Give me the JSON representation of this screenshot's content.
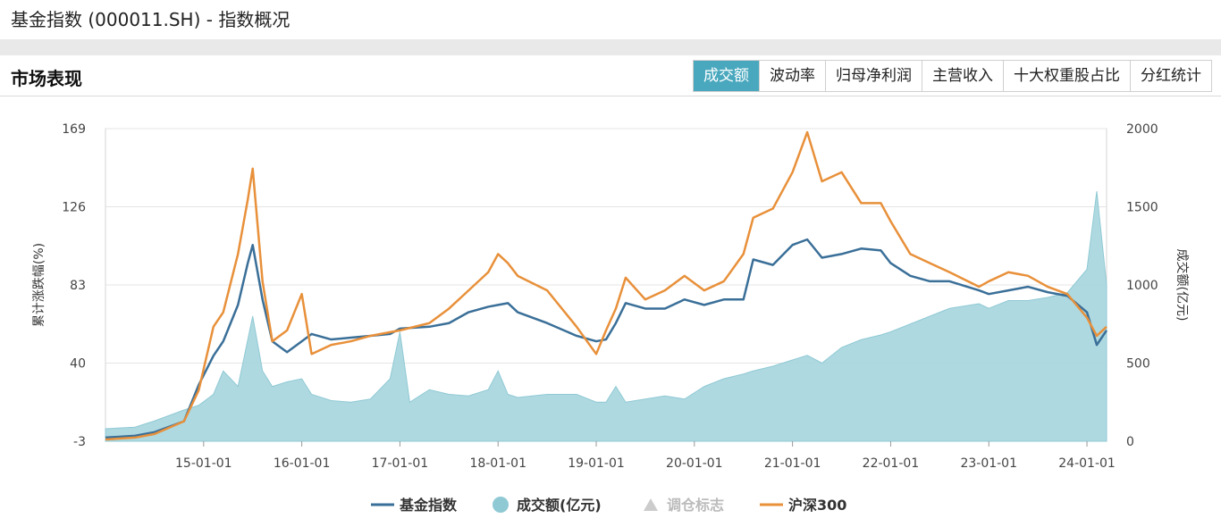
{
  "page": {
    "title": "基金指数 (000011.SH) - 指数概况"
  },
  "section": {
    "title": "市场表现",
    "tabs": [
      {
        "label": "成交额",
        "active": true
      },
      {
        "label": "波动率",
        "active": false
      },
      {
        "label": "归母净利润",
        "active": false
      },
      {
        "label": "主营收入",
        "active": false
      },
      {
        "label": "十大权重股占比",
        "active": false
      },
      {
        "label": "分红统计",
        "active": false
      }
    ]
  },
  "colors": {
    "fund_line": "#3a6f98",
    "csi300_line": "#e8903a",
    "volume_fill": "#a6d5de",
    "active_tab": "#4aa8be"
  },
  "chart_data": {
    "type": "line",
    "xlabel": "",
    "ylabel_left": "累计涨跌幅(%)",
    "ylabel_right": "成交额(亿元)",
    "y_left_ticks": [
      -3,
      40,
      83,
      126,
      169
    ],
    "y_right_ticks": [
      0,
      500,
      1000,
      1500,
      2000
    ],
    "y_left_range": [
      -3,
      169
    ],
    "y_right_range": [
      0,
      2000
    ],
    "x_range": [
      2014.0,
      2024.2
    ],
    "x_ticks": [
      "15-01-01",
      "16-01-01",
      "17-01-01",
      "18-01-01",
      "19-01-01",
      "20-01-01",
      "21-01-01",
      "22-01-01",
      "23-01-01",
      "24-01-01"
    ],
    "grid": "horizontal",
    "legend": [
      "基金指数",
      "成交额(亿元)",
      "调仓标志",
      "沪深300"
    ],
    "legend_position": "bottom",
    "series": [
      {
        "name": "基金指数",
        "axis": "left",
        "kind": "line",
        "points": [
          [
            2014.0,
            -1
          ],
          [
            2014.3,
            0
          ],
          [
            2014.5,
            2
          ],
          [
            2014.8,
            8
          ],
          [
            2014.95,
            28
          ],
          [
            2015.1,
            44
          ],
          [
            2015.2,
            52
          ],
          [
            2015.35,
            72
          ],
          [
            2015.45,
            95
          ],
          [
            2015.5,
            105
          ],
          [
            2015.6,
            75
          ],
          [
            2015.7,
            52
          ],
          [
            2015.85,
            46
          ],
          [
            2016.0,
            52
          ],
          [
            2016.1,
            56
          ],
          [
            2016.3,
            53
          ],
          [
            2016.5,
            54
          ],
          [
            2016.7,
            55
          ],
          [
            2016.9,
            56
          ],
          [
            2017.0,
            59
          ],
          [
            2017.3,
            60
          ],
          [
            2017.5,
            62
          ],
          [
            2017.7,
            68
          ],
          [
            2017.9,
            71
          ],
          [
            2018.0,
            72
          ],
          [
            2018.1,
            73
          ],
          [
            2018.2,
            68
          ],
          [
            2018.5,
            62
          ],
          [
            2018.8,
            55
          ],
          [
            2019.0,
            52
          ],
          [
            2019.1,
            53
          ],
          [
            2019.2,
            62
          ],
          [
            2019.3,
            73
          ],
          [
            2019.5,
            70
          ],
          [
            2019.7,
            70
          ],
          [
            2019.9,
            75
          ],
          [
            2020.1,
            72
          ],
          [
            2020.3,
            75
          ],
          [
            2020.5,
            75
          ],
          [
            2020.6,
            97
          ],
          [
            2020.8,
            94
          ],
          [
            2021.0,
            105
          ],
          [
            2021.15,
            108
          ],
          [
            2021.3,
            98
          ],
          [
            2021.5,
            100
          ],
          [
            2021.7,
            103
          ],
          [
            2021.9,
            102
          ],
          [
            2022.0,
            95
          ],
          [
            2022.2,
            88
          ],
          [
            2022.4,
            85
          ],
          [
            2022.6,
            85
          ],
          [
            2022.9,
            80
          ],
          [
            2023.0,
            78
          ],
          [
            2023.2,
            80
          ],
          [
            2023.4,
            82
          ],
          [
            2023.6,
            79
          ],
          [
            2023.8,
            77
          ],
          [
            2024.0,
            68
          ],
          [
            2024.1,
            50
          ],
          [
            2024.2,
            58
          ]
        ]
      },
      {
        "name": "沪深300",
        "axis": "left",
        "kind": "line",
        "points": [
          [
            2014.0,
            -2
          ],
          [
            2014.3,
            -1
          ],
          [
            2014.5,
            1
          ],
          [
            2014.8,
            8
          ],
          [
            2014.95,
            25
          ],
          [
            2015.1,
            60
          ],
          [
            2015.2,
            68
          ],
          [
            2015.35,
            100
          ],
          [
            2015.45,
            130
          ],
          [
            2015.5,
            147
          ],
          [
            2015.6,
            85
          ],
          [
            2015.7,
            52
          ],
          [
            2015.85,
            58
          ],
          [
            2016.0,
            78
          ],
          [
            2016.1,
            45
          ],
          [
            2016.3,
            50
          ],
          [
            2016.5,
            52
          ],
          [
            2016.7,
            55
          ],
          [
            2016.9,
            57
          ],
          [
            2017.0,
            58
          ],
          [
            2017.3,
            62
          ],
          [
            2017.5,
            70
          ],
          [
            2017.7,
            80
          ],
          [
            2017.9,
            90
          ],
          [
            2018.0,
            100
          ],
          [
            2018.1,
            95
          ],
          [
            2018.2,
            88
          ],
          [
            2018.5,
            80
          ],
          [
            2018.8,
            60
          ],
          [
            2019.0,
            45
          ],
          [
            2019.1,
            58
          ],
          [
            2019.2,
            70
          ],
          [
            2019.3,
            87
          ],
          [
            2019.5,
            75
          ],
          [
            2019.7,
            80
          ],
          [
            2019.9,
            88
          ],
          [
            2020.1,
            80
          ],
          [
            2020.3,
            85
          ],
          [
            2020.5,
            100
          ],
          [
            2020.6,
            120
          ],
          [
            2020.8,
            125
          ],
          [
            2021.0,
            145
          ],
          [
            2021.15,
            167
          ],
          [
            2021.3,
            140
          ],
          [
            2021.5,
            145
          ],
          [
            2021.7,
            128
          ],
          [
            2021.9,
            128
          ],
          [
            2022.0,
            118
          ],
          [
            2022.2,
            100
          ],
          [
            2022.4,
            95
          ],
          [
            2022.6,
            90
          ],
          [
            2022.9,
            82
          ],
          [
            2023.0,
            85
          ],
          [
            2023.2,
            90
          ],
          [
            2023.4,
            88
          ],
          [
            2023.6,
            82
          ],
          [
            2023.8,
            78
          ],
          [
            2024.0,
            65
          ],
          [
            2024.1,
            55
          ],
          [
            2024.2,
            60
          ]
        ]
      },
      {
        "name": "成交额(亿元)",
        "axis": "right",
        "kind": "area",
        "points": [
          [
            2014.0,
            80
          ],
          [
            2014.3,
            90
          ],
          [
            2014.5,
            130
          ],
          [
            2014.8,
            200
          ],
          [
            2014.95,
            230
          ],
          [
            2015.1,
            300
          ],
          [
            2015.2,
            450
          ],
          [
            2015.35,
            350
          ],
          [
            2015.45,
            650
          ],
          [
            2015.5,
            800
          ],
          [
            2015.6,
            450
          ],
          [
            2015.7,
            350
          ],
          [
            2015.85,
            380
          ],
          [
            2016.0,
            400
          ],
          [
            2016.1,
            300
          ],
          [
            2016.3,
            260
          ],
          [
            2016.5,
            250
          ],
          [
            2016.7,
            270
          ],
          [
            2016.9,
            400
          ],
          [
            2017.0,
            700
          ],
          [
            2017.1,
            250
          ],
          [
            2017.3,
            330
          ],
          [
            2017.5,
            300
          ],
          [
            2017.7,
            290
          ],
          [
            2017.9,
            330
          ],
          [
            2018.0,
            450
          ],
          [
            2018.1,
            300
          ],
          [
            2018.2,
            280
          ],
          [
            2018.5,
            300
          ],
          [
            2018.8,
            300
          ],
          [
            2019.0,
            250
          ],
          [
            2019.1,
            250
          ],
          [
            2019.2,
            350
          ],
          [
            2019.3,
            250
          ],
          [
            2019.5,
            270
          ],
          [
            2019.7,
            290
          ],
          [
            2019.9,
            270
          ],
          [
            2020.1,
            350
          ],
          [
            2020.3,
            400
          ],
          [
            2020.5,
            430
          ],
          [
            2020.6,
            450
          ],
          [
            2020.8,
            480
          ],
          [
            2021.0,
            520
          ],
          [
            2021.15,
            550
          ],
          [
            2021.3,
            500
          ],
          [
            2021.5,
            600
          ],
          [
            2021.7,
            650
          ],
          [
            2021.9,
            680
          ],
          [
            2022.0,
            700
          ],
          [
            2022.2,
            750
          ],
          [
            2022.4,
            800
          ],
          [
            2022.6,
            850
          ],
          [
            2022.9,
            880
          ],
          [
            2023.0,
            850
          ],
          [
            2023.2,
            900
          ],
          [
            2023.4,
            900
          ],
          [
            2023.6,
            920
          ],
          [
            2023.8,
            950
          ],
          [
            2024.0,
            1100
          ],
          [
            2024.1,
            1600
          ],
          [
            2024.2,
            1000
          ]
        ]
      }
    ]
  }
}
